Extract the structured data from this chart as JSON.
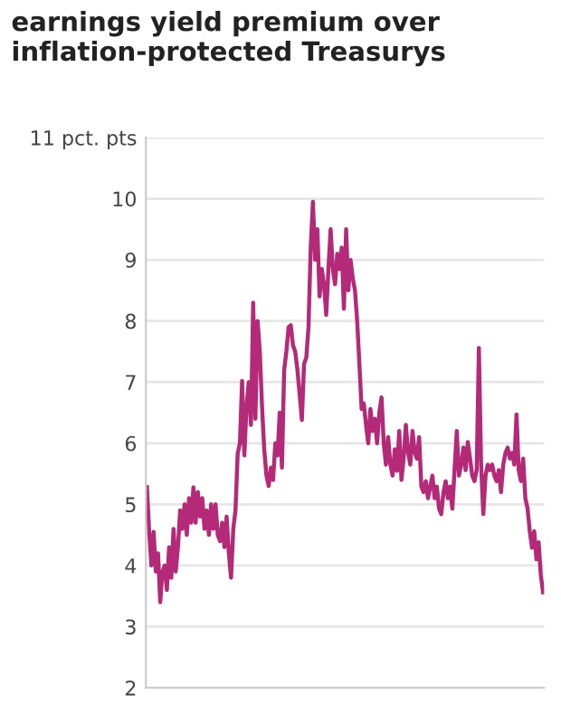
{
  "chart_data": {
    "type": "line",
    "title": "earnings yield premium over inflation-protected Treasurys",
    "color": "#b52a78",
    "ylim": [
      2,
      11
    ],
    "yticks": [
      2,
      3,
      4,
      5,
      6,
      7,
      8,
      9,
      10,
      {
        "value": 11,
        "label": "11 pct. pts"
      }
    ],
    "grid": "y",
    "tick_labels": "y",
    "categories": [
      null,
      null,
      null,
      null,
      null,
      null,
      null,
      null,
      null,
      null,
      null,
      null,
      null,
      null,
      null,
      null,
      null,
      null,
      null,
      null,
      null,
      null,
      null,
      null,
      null,
      null,
      null,
      null,
      null,
      null,
      null,
      null,
      null,
      null,
      null,
      null,
      null,
      null,
      null,
      null,
      null,
      null,
      null,
      null,
      null,
      null,
      null,
      null,
      null,
      null,
      null,
      null,
      null,
      null,
      null,
      null,
      null,
      null,
      null,
      null,
      null,
      null,
      null,
      null,
      null,
      null,
      null,
      null,
      null,
      null,
      null,
      null,
      null,
      null,
      null,
      null,
      null,
      null,
      null,
      null,
      null,
      null,
      null,
      null,
      null,
      null,
      null,
      null,
      null,
      null,
      null,
      null,
      null,
      null,
      null,
      null,
      null,
      null,
      null,
      null,
      null,
      null,
      null,
      null,
      null,
      null,
      null,
      null,
      null,
      null,
      null,
      null,
      null,
      null,
      null,
      null,
      null,
      null,
      null,
      null,
      null,
      null,
      null,
      null,
      null,
      null,
      null,
      null,
      null,
      null,
      null,
      null,
      null,
      null,
      null,
      null,
      null,
      null,
      null,
      null,
      null,
      null,
      null,
      null,
      null,
      null,
      null,
      null,
      null,
      null,
      null,
      null,
      null,
      null,
      null,
      null,
      null,
      null,
      null,
      null,
      null,
      null,
      null,
      null,
      null,
      null,
      null,
      null,
      null,
      null,
      null,
      null,
      null,
      null,
      null,
      null,
      null,
      null,
      null,
      null
    ],
    "values": [
      5.28,
      4.55,
      4.0,
      4.55,
      3.9,
      4.2,
      3.4,
      3.9,
      4.0,
      3.6,
      4.3,
      3.8,
      4.6,
      3.9,
      4.3,
      4.9,
      4.6,
      5.0,
      4.5,
      5.1,
      4.7,
      5.28,
      4.7,
      5.2,
      4.8,
      5.1,
      4.6,
      4.9,
      4.5,
      5.0,
      4.6,
      5.0,
      4.5,
      4.4,
      4.7,
      4.3,
      4.8,
      4.2,
      3.8,
      4.6,
      4.9,
      5.83,
      6.0,
      7.02,
      5.8,
      6.6,
      7.0,
      6.3,
      8.3,
      6.4,
      8.0,
      7.5,
      6.6,
      5.9,
      5.47,
      5.3,
      5.6,
      5.4,
      6.0,
      5.8,
      6.5,
      5.6,
      7.2,
      7.5,
      7.9,
      7.93,
      7.6,
      7.5,
      7.2,
      6.8,
      6.38,
      7.3,
      7.4,
      7.9,
      9.2,
      9.95,
      9.0,
      9.5,
      8.4,
      8.85,
      8.6,
      8.1,
      8.85,
      9.5,
      8.85,
      8.6,
      9.1,
      8.85,
      9.2,
      8.2,
      9.5,
      8.5,
      9.0,
      8.7,
      8.5,
      8.0,
      7.3,
      6.56,
      6.65,
      6.3,
      6.0,
      6.56,
      6.2,
      6.4,
      6.0,
      6.5,
      6.75,
      6.0,
      5.65,
      6.1,
      5.65,
      5.47,
      5.9,
      5.55,
      6.2,
      5.4,
      5.75,
      6.3,
      5.85,
      5.65,
      6.2,
      5.85,
      5.75,
      6.1,
      5.29,
      5.2,
      5.38,
      5.1,
      5.29,
      5.47,
      5.1,
      5.29,
      4.93,
      4.84,
      5.2,
      5.38,
      5.1,
      5.29,
      4.93,
      5.56,
      6.2,
      5.47,
      5.65,
      5.93,
      5.56,
      6.02,
      5.75,
      5.47,
      5.38,
      5.56,
      7.56,
      5.65,
      4.84,
      5.47,
      5.65,
      5.56,
      5.65,
      5.47,
      5.38,
      5.56,
      5.2,
      5.65,
      5.84,
      5.93,
      5.75,
      5.84,
      5.65,
      6.47,
      5.56,
      5.38,
      5.75,
      5.1,
      4.93,
      4.56,
      4.29,
      4.56,
      4.1,
      4.38,
      3.84,
      3.56
    ]
  }
}
